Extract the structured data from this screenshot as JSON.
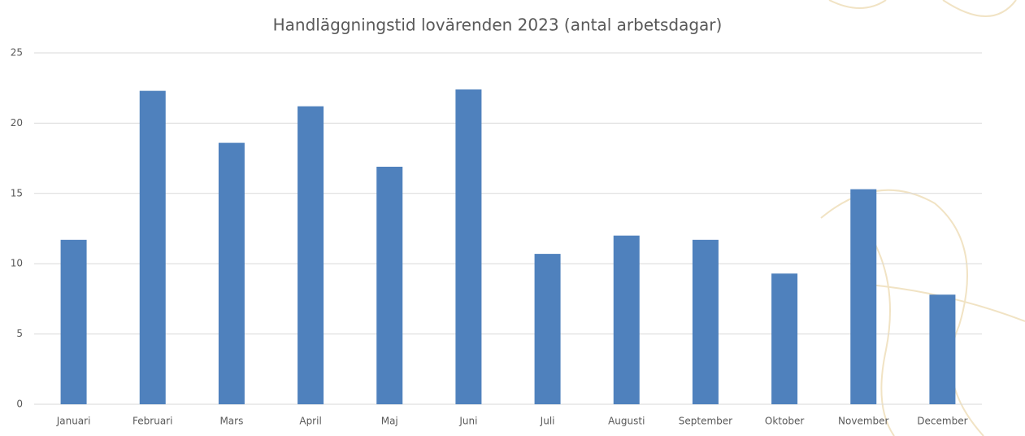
{
  "chart_data": {
    "type": "bar",
    "title": "Handläggningstid lovärenden 2023 (antal arbetsdagar)",
    "categories": [
      "Januari",
      "Februari",
      "Mars",
      "April",
      "Maj",
      "Juni",
      "Juli",
      "Augusti",
      "September",
      "Oktober",
      "November",
      "December"
    ],
    "values": [
      11.7,
      22.3,
      18.6,
      21.2,
      16.9,
      22.4,
      10.7,
      12.0,
      11.7,
      9.3,
      15.3,
      7.8
    ],
    "color": "#4f81bd",
    "ylim": [
      0,
      25
    ],
    "yticks": [
      0,
      5,
      10,
      15,
      20,
      25
    ],
    "grid": true
  }
}
